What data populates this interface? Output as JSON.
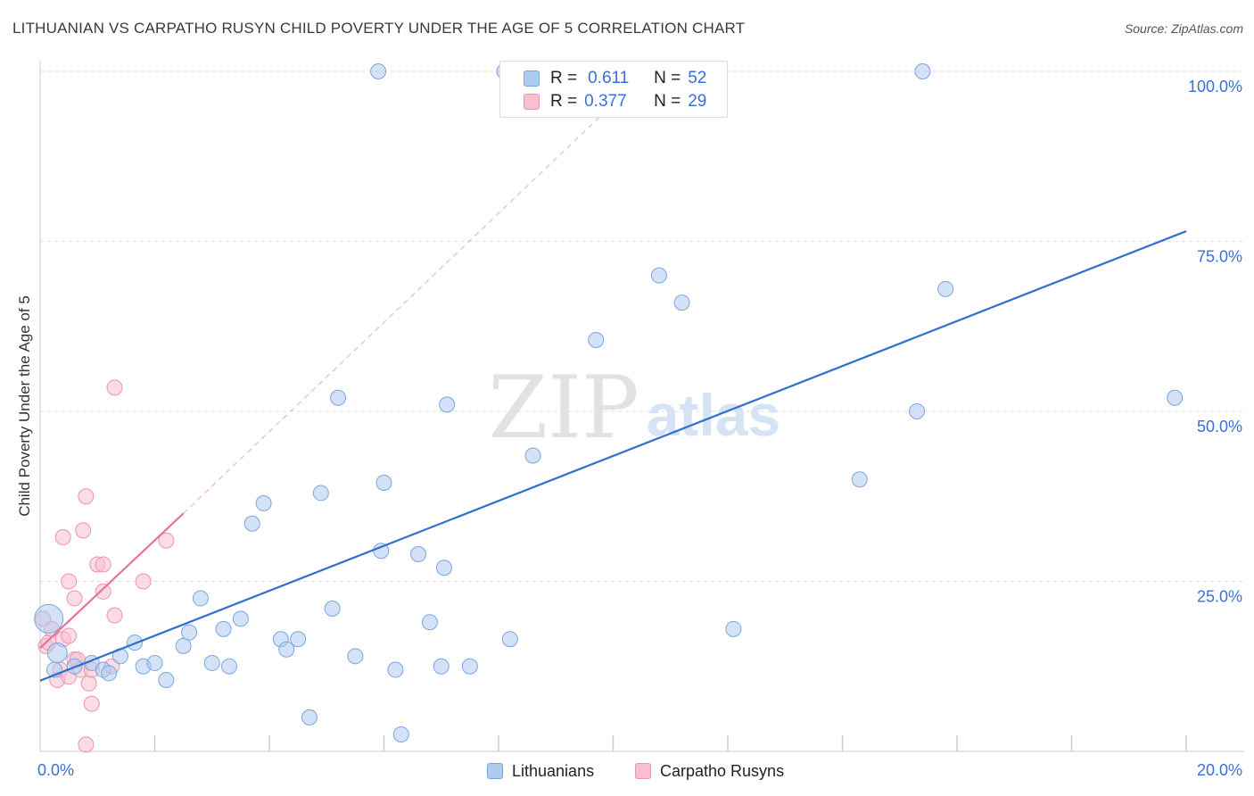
{
  "title": "LITHUANIAN VS CARPATHO RUSYN CHILD POVERTY UNDER THE AGE OF 5 CORRELATION CHART",
  "source": "Source: ZipAtlas.com",
  "watermark": {
    "zip": "ZIP",
    "atlas": "atlas"
  },
  "legend": {
    "row1": {
      "r_label": "R =",
      "r_value": "0.611",
      "n_label": "N =",
      "n_value": "52"
    },
    "row2": {
      "r_label": "R =",
      "r_value": "0.377",
      "n_label": "N =",
      "n_value": "29"
    }
  },
  "bottom_legend": {
    "series1": "Lithuanians",
    "series2": "Carpatho Rusyns"
  },
  "colors": {
    "blue_fill": "#aecbf0",
    "blue_stroke": "#7aa6de",
    "blue_line": "#2f6fce",
    "pink_fill": "#f7bfd0",
    "pink_stroke": "#ee93b0",
    "pink_line": "#e8729a",
    "tick_label": "#3a6fd8",
    "grid": "#dddddd"
  },
  "chart_data": {
    "type": "scatter",
    "title": "LITHUANIAN VS CARPATHO RUSYN CHILD POVERTY UNDER THE AGE OF 5 CORRELATION CHART",
    "xlabel": "",
    "ylabel": "Child Poverty Under the Age of 5",
    "xlim": [
      0,
      20
    ],
    "ylim": [
      0,
      100
    ],
    "x_tick_labels": [
      "0.0%",
      "20.0%"
    ],
    "y_tick_labels": [
      "25.0%",
      "50.0%",
      "75.0%",
      "100.0%"
    ],
    "y_ticks": [
      25,
      50,
      75,
      100
    ],
    "series": [
      {
        "name": "Lithuanians",
        "r": 0.611,
        "n": 52,
        "trend": {
          "x0": 0,
          "y0": 10.4,
          "x1": 20,
          "y1": 76.5
        },
        "points": [
          [
            0.15,
            19.5
          ],
          [
            0.3,
            14.5
          ],
          [
            0.6,
            12.5
          ],
          [
            0.9,
            13
          ],
          [
            1.1,
            12
          ],
          [
            1.2,
            11.5
          ],
          [
            1.4,
            14
          ],
          [
            1.65,
            16
          ],
          [
            1.8,
            12.5
          ],
          [
            2.0,
            13
          ],
          [
            2.2,
            10.5
          ],
          [
            2.5,
            15.5
          ],
          [
            2.6,
            17.5
          ],
          [
            2.8,
            22.5
          ],
          [
            3.0,
            13
          ],
          [
            3.2,
            18
          ],
          [
            3.3,
            12.5
          ],
          [
            3.5,
            19.5
          ],
          [
            3.7,
            33.5
          ],
          [
            3.9,
            36.5
          ],
          [
            4.2,
            16.5
          ],
          [
            4.3,
            15
          ],
          [
            4.5,
            16.5
          ],
          [
            4.7,
            5
          ],
          [
            4.9,
            38
          ],
          [
            5.1,
            21
          ],
          [
            5.2,
            52
          ],
          [
            5.5,
            14
          ],
          [
            5.9,
            100
          ],
          [
            5.95,
            29.5
          ],
          [
            6.0,
            39.5
          ],
          [
            6.2,
            12
          ],
          [
            6.3,
            2.5
          ],
          [
            6.6,
            29
          ],
          [
            6.8,
            19
          ],
          [
            7.0,
            12.5
          ],
          [
            7.05,
            27
          ],
          [
            7.1,
            51
          ],
          [
            7.5,
            12.5
          ],
          [
            8.1,
            100
          ],
          [
            8.2,
            16.5
          ],
          [
            8.6,
            43.5
          ],
          [
            9.7,
            60.5
          ],
          [
            10.8,
            70
          ],
          [
            11.2,
            66
          ],
          [
            12.1,
            18
          ],
          [
            14.3,
            40
          ],
          [
            15.3,
            50
          ],
          [
            15.4,
            100
          ],
          [
            15.8,
            68
          ],
          [
            19.8,
            52
          ],
          [
            0.25,
            12
          ]
        ]
      },
      {
        "name": "Carpatho Rusyns",
        "r": 0.377,
        "n": 29,
        "trend_solid": {
          "x0": 0,
          "y0": 15.2,
          "x1": 2.5,
          "y1": 35
        },
        "trend_dashed": {
          "x0": 2.5,
          "y0": 35,
          "x1": 10.6,
          "y1": 100
        },
        "points": [
          [
            0.05,
            19.5
          ],
          [
            0.1,
            15.5
          ],
          [
            0.15,
            16
          ],
          [
            0.2,
            18
          ],
          [
            0.3,
            10.5
          ],
          [
            0.35,
            12
          ],
          [
            0.4,
            31.5
          ],
          [
            0.4,
            16.5
          ],
          [
            0.5,
            17
          ],
          [
            0.5,
            25
          ],
          [
            0.5,
            11
          ],
          [
            0.6,
            22.5
          ],
          [
            0.6,
            13.5
          ],
          [
            0.65,
            13.5
          ],
          [
            0.7,
            12
          ],
          [
            0.75,
            32.5
          ],
          [
            0.8,
            1
          ],
          [
            0.8,
            37.5
          ],
          [
            0.85,
            10
          ],
          [
            0.9,
            12
          ],
          [
            0.9,
            7
          ],
          [
            1.0,
            27.5
          ],
          [
            1.1,
            27.5
          ],
          [
            1.1,
            23.5
          ],
          [
            1.25,
            12.5
          ],
          [
            1.3,
            20
          ],
          [
            1.3,
            53.5
          ],
          [
            1.8,
            25
          ],
          [
            2.2,
            31
          ]
        ]
      }
    ]
  }
}
